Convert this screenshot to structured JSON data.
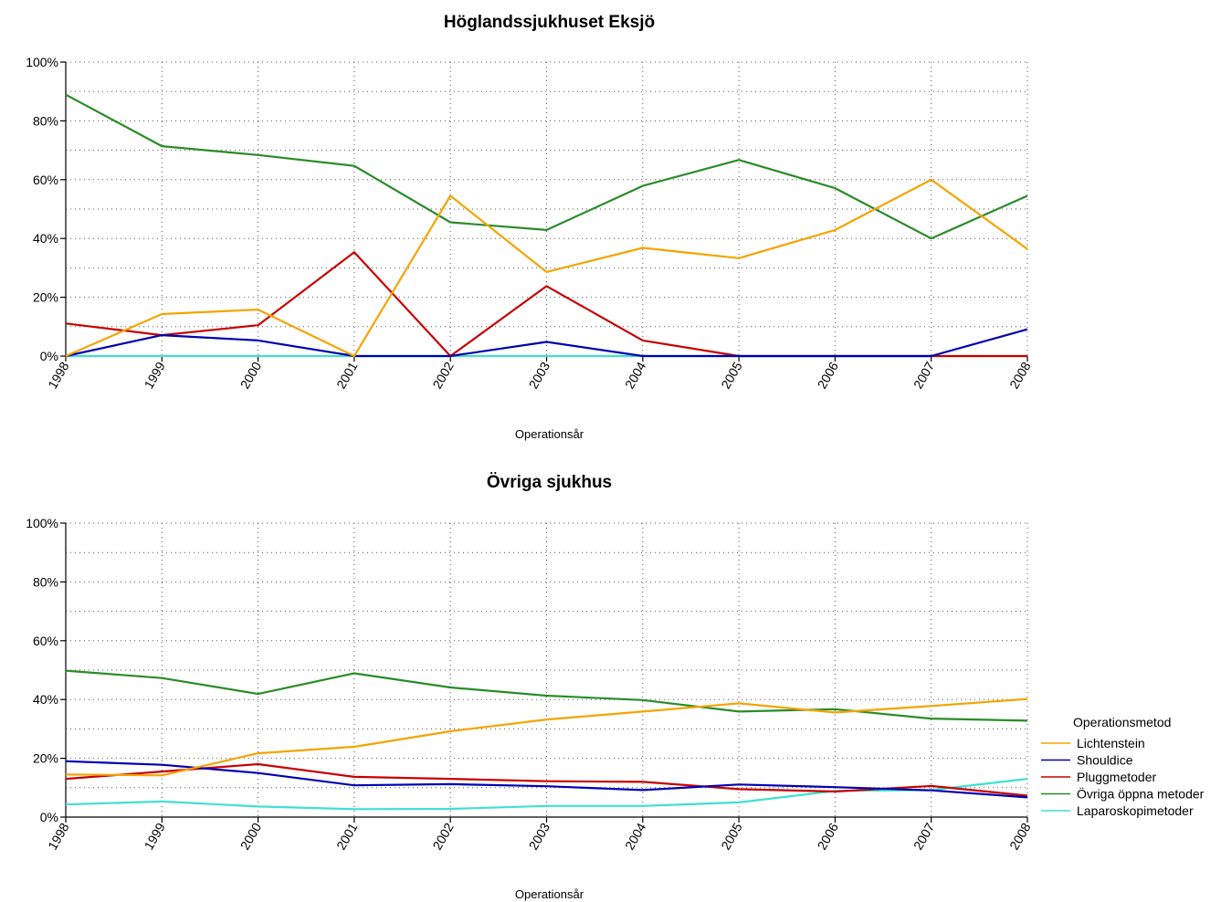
{
  "legend": {
    "title": "Operationsmetod",
    "placement": "right",
    "items": [
      {
        "name": "Lichtenstein",
        "color": "#F5A400"
      },
      {
        "name": "Shouldice",
        "color": "#0000B3"
      },
      {
        "name": "Pluggmetoder",
        "color": "#C80000"
      },
      {
        "name": "Övriga öppna metoder",
        "color": "#2A8C2A"
      },
      {
        "name": "Laparoskopimetoder",
        "color": "#40E0D0"
      }
    ]
  },
  "chart_data": [
    {
      "type": "line",
      "title": "Höglandssjukhuset Eksjö",
      "xlabel": "Operationsår",
      "ylabel": "",
      "x": [
        "1998",
        "1999",
        "2000",
        "2001",
        "2002",
        "2003",
        "2004",
        "2005",
        "2006",
        "2007",
        "2008"
      ],
      "ylim": [
        0,
        100
      ],
      "yticks": [
        "0%",
        "20%",
        "40%",
        "60%",
        "80%",
        "100%"
      ],
      "grid": true,
      "series": [
        {
          "name": "Lichtenstein",
          "color": "#F5A400",
          "values": [
            0,
            14.3,
            15.8,
            0,
            54.5,
            28.6,
            36.8,
            33.3,
            42.9,
            60,
            36.4
          ]
        },
        {
          "name": "Shouldice",
          "color": "#0000B3",
          "values": [
            0,
            7.1,
            5.3,
            0,
            0,
            4.8,
            0,
            0,
            0,
            0,
            9.1
          ]
        },
        {
          "name": "Pluggmetoder",
          "color": "#C80000",
          "values": [
            11.1,
            7.1,
            10.5,
            35.3,
            0,
            23.8,
            5.3,
            0,
            0,
            0,
            0
          ]
        },
        {
          "name": "Övriga öppna metoder",
          "color": "#2A8C2A",
          "values": [
            88.9,
            71.4,
            68.4,
            64.7,
            45.5,
            42.9,
            57.9,
            66.7,
            57.1,
            40,
            54.5
          ]
        },
        {
          "name": "Laparoskopimetoder",
          "color": "#40E0D0",
          "values": [
            0,
            0,
            0,
            0,
            0,
            0,
            0,
            0,
            0,
            0,
            0
          ]
        }
      ]
    },
    {
      "type": "line",
      "title": "Övriga sjukhus",
      "xlabel": "Operationsår",
      "ylabel": "",
      "x": [
        "1998",
        "1999",
        "2000",
        "2001",
        "2002",
        "2003",
        "2004",
        "2005",
        "2006",
        "2007",
        "2008"
      ],
      "ylim": [
        0,
        100
      ],
      "yticks": [
        "0%",
        "20%",
        "40%",
        "60%",
        "80%",
        "100%"
      ],
      "grid": true,
      "series": [
        {
          "name": "Lichtenstein",
          "color": "#F5A400",
          "values": [
            14.5,
            14.2,
            21.7,
            23.9,
            29.2,
            33.2,
            35.9,
            38.7,
            35.6,
            37.8,
            40.2
          ]
        },
        {
          "name": "Shouldice",
          "color": "#0000B3",
          "values": [
            19,
            17.8,
            15,
            10.8,
            11.2,
            10.5,
            9.2,
            11.1,
            10.2,
            9.1,
            6.7
          ]
        },
        {
          "name": "Pluggmetoder",
          "color": "#C80000",
          "values": [
            13,
            15.5,
            18,
            13.7,
            13,
            12.2,
            12,
            9.5,
            8.7,
            10.6,
            7.3
          ]
        },
        {
          "name": "Övriga öppna metoder",
          "color": "#2A8C2A",
          "values": [
            49.8,
            47.3,
            41.9,
            48.9,
            44.1,
            41.3,
            39.8,
            35.9,
            36.7,
            33.5,
            32.8
          ]
        },
        {
          "name": "Laparoskopimetoder",
          "color": "#40E0D0",
          "values": [
            4.3,
            5.3,
            3.6,
            2.7,
            2.8,
            3.8,
            3.8,
            5,
            8.9,
            9.2,
            13
          ]
        }
      ]
    }
  ]
}
